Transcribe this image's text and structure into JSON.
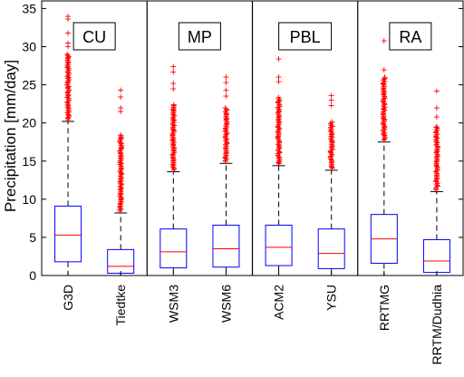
{
  "chart_data": {
    "type": "box",
    "ylabel": "Precipitation [mm/day]",
    "ylim": [
      0,
      36
    ],
    "yticks": [
      0,
      5,
      10,
      15,
      20,
      25,
      30,
      35
    ],
    "grid": false,
    "colors": {
      "box": "#0000ff",
      "median": "#ff0000",
      "outlier": "#ff0000",
      "whisker": "#000000"
    },
    "groups": [
      {
        "label": "CU",
        "categories": [
          "G3D",
          "Tiedtke"
        ]
      },
      {
        "label": "MP",
        "categories": [
          "WSM3",
          "WSM6"
        ]
      },
      {
        "label": "PBL",
        "categories": [
          "ACM2",
          "YSU"
        ]
      },
      {
        "label": "RA",
        "categories": [
          "RRTMG",
          "RRTM/Dudhia"
        ]
      }
    ],
    "boxes": [
      {
        "name": "G3D",
        "min": 0.0,
        "q1": 1.8,
        "median": 5.3,
        "q3": 9.1,
        "whisker_high": 20.2,
        "outliers_from": 20.2,
        "outliers_max": 34.0,
        "sparse": [
          30.0,
          30.5,
          31.8,
          33.6,
          34.0
        ]
      },
      {
        "name": "Tiedtke",
        "min": 0.0,
        "q1": 0.3,
        "median": 1.2,
        "q3": 3.4,
        "whisker_high": 8.2,
        "outliers_from": 8.2,
        "outliers_max": 24.3,
        "sparse": [
          21.5,
          22.0,
          23.4,
          24.3
        ]
      },
      {
        "name": "WSM3",
        "min": 0.0,
        "q1": 1.0,
        "median": 3.1,
        "q3": 6.1,
        "whisker_high": 13.6,
        "outliers_from": 13.6,
        "outliers_max": 27.4,
        "sparse": [
          24.5,
          25.2,
          26.7,
          27.4
        ]
      },
      {
        "name": "WSM6",
        "min": 0.0,
        "q1": 1.1,
        "median": 3.5,
        "q3": 6.6,
        "whisker_high": 14.7,
        "outliers_from": 14.7,
        "outliers_max": 26.0,
        "sparse": [
          23.5,
          24.3,
          25.3,
          26.0
        ]
      },
      {
        "name": "ACM2",
        "min": 0.0,
        "q1": 1.3,
        "median": 3.7,
        "q3": 6.6,
        "whisker_high": 14.4,
        "outliers_from": 14.4,
        "outliers_max": 28.4,
        "sparse": [
          25.4,
          26.0,
          28.4
        ]
      },
      {
        "name": "YSU",
        "min": 0.0,
        "q1": 0.9,
        "median": 2.9,
        "q3": 6.1,
        "whisker_high": 13.8,
        "outliers_from": 13.8,
        "outliers_max": 23.6,
        "sparse": [
          22.3,
          23.0,
          23.6
        ]
      },
      {
        "name": "RRTMG",
        "min": 0.0,
        "q1": 1.6,
        "median": 4.8,
        "q3": 8.0,
        "whisker_high": 17.5,
        "outliers_from": 17.5,
        "outliers_max": 30.8,
        "sparse": [
          27.0,
          30.8
        ]
      },
      {
        "name": "RRTM/Dudhia",
        "min": 0.0,
        "q1": 0.4,
        "median": 1.9,
        "q3": 4.7,
        "whisker_high": 11.0,
        "outliers_from": 11.0,
        "outliers_max": 24.2,
        "sparse": [
          19.5,
          20.8,
          22.0,
          24.2
        ]
      }
    ]
  }
}
